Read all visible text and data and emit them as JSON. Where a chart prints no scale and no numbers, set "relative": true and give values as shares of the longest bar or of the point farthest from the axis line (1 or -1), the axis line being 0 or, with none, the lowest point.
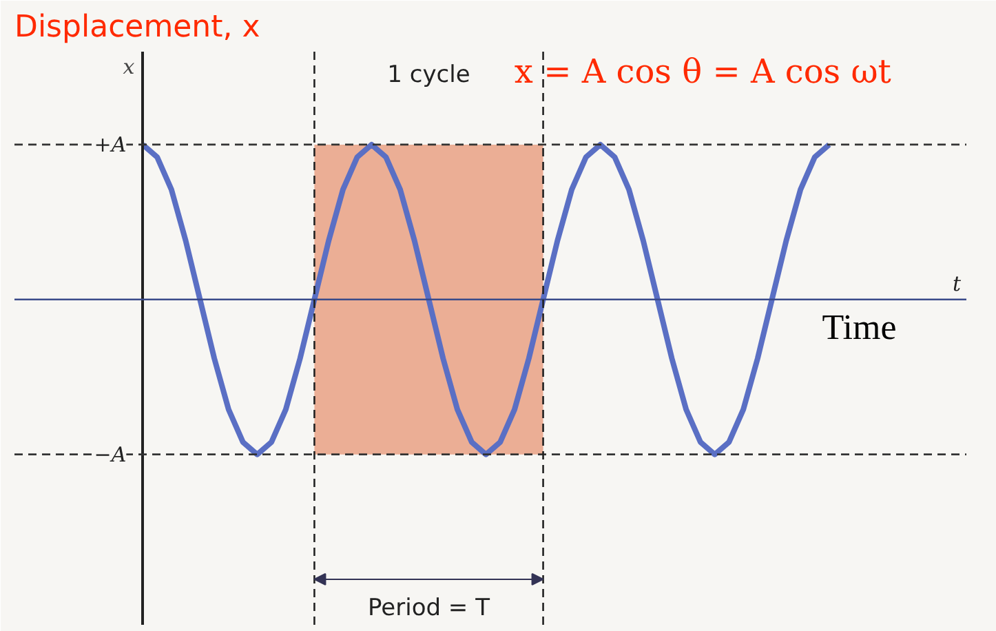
{
  "chart_data": {
    "type": "line",
    "title": "Displacement, x",
    "ylabel": "x",
    "relative": true,
    "annotations": [
      "x = A cos θ = A cos ωt",
      "1 cycle",
      "Period = T",
      "Time",
      "t"
    ],
    "categories": [
      null,
      null,
      null,
      null,
      null,
      null,
      null,
      null,
      null,
      null,
      null,
      null,
      null,
      null,
      null,
      null,
      null,
      null,
      null,
      null,
      null,
      null,
      null,
      null,
      null,
      null,
      null,
      null,
      null,
      null,
      null,
      null,
      null,
      null,
      null,
      null,
      null,
      null,
      null,
      null,
      null,
      null,
      null,
      null,
      null,
      null,
      null,
      null,
      null
    ],
    "series": [
      {
        "color": "#5a6fc4",
        "values": [
          1,
          0.92,
          0.71,
          0.38,
          0,
          -0.38,
          -0.71,
          -0.92,
          -1,
          -0.92,
          -0.71,
          -0.38,
          0,
          0.38,
          0.71,
          0.92,
          1,
          0.92,
          0.71,
          0.38,
          0,
          -0.38,
          -0.71,
          -0.92,
          -1,
          -0.92,
          -0.71,
          -0.38,
          0,
          0.38,
          0.71,
          0.92,
          1,
          0.92,
          0.71,
          0.38,
          0,
          -0.38,
          -0.71,
          -0.92,
          -1,
          -0.92,
          -0.71,
          -0.38,
          0,
          0.38,
          0.71,
          0.92,
          1
        ]
      }
    ],
    "line_style": "solid",
    "ref_lines": [
      {
        "axis": "y",
        "value": 1,
        "label": "+A",
        "color": "#333333",
        "line_style": "dashed"
      },
      {
        "axis": "y",
        "value": -1,
        "label": "−A",
        "color": "#333333",
        "line_style": "dashed"
      },
      {
        "axis": "y",
        "value": 0,
        "color": "#3a4a8a",
        "line_style": "solid"
      }
    ]
  }
}
